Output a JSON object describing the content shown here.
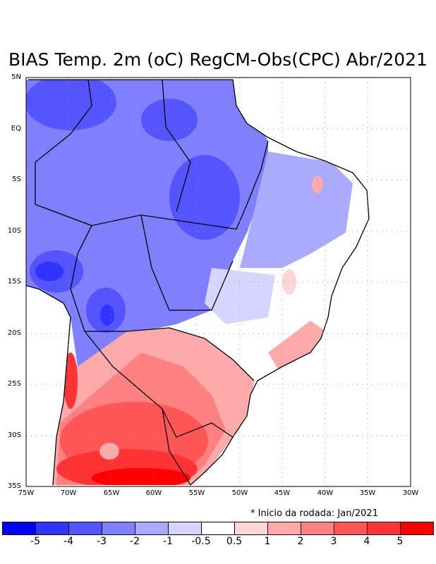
{
  "title": "BIAS Temp. 2m (oC) RegCM-Obs(CPC) Abr/2021",
  "note": "* Inicio da rodada: Jan/2021",
  "y_axis_labels": [
    "5N",
    "EQ",
    "5S",
    "10S",
    "15S",
    "20S",
    "25S",
    "30S",
    "35S"
  ],
  "x_axis_labels": [
    "75W",
    "70W",
    "65W",
    "60W",
    "55W",
    "50W",
    "45W",
    "40W",
    "35W",
    "30W"
  ],
  "colorbar": {
    "labels": [
      "-5",
      "-4",
      "-3",
      "-2",
      "-1",
      "-0.5",
      "0.5",
      "1",
      "2",
      "3",
      "4",
      "5"
    ],
    "colors": [
      "#0000ff",
      "#3333ff",
      "#5555ff",
      "#8080ff",
      "#aaaaff",
      "#d5d5ff",
      "#ffffff",
      "#ffd5d5",
      "#ffaaaa",
      "#ff8080",
      "#ff5555",
      "#ff3333",
      "#ff0000"
    ]
  }
}
